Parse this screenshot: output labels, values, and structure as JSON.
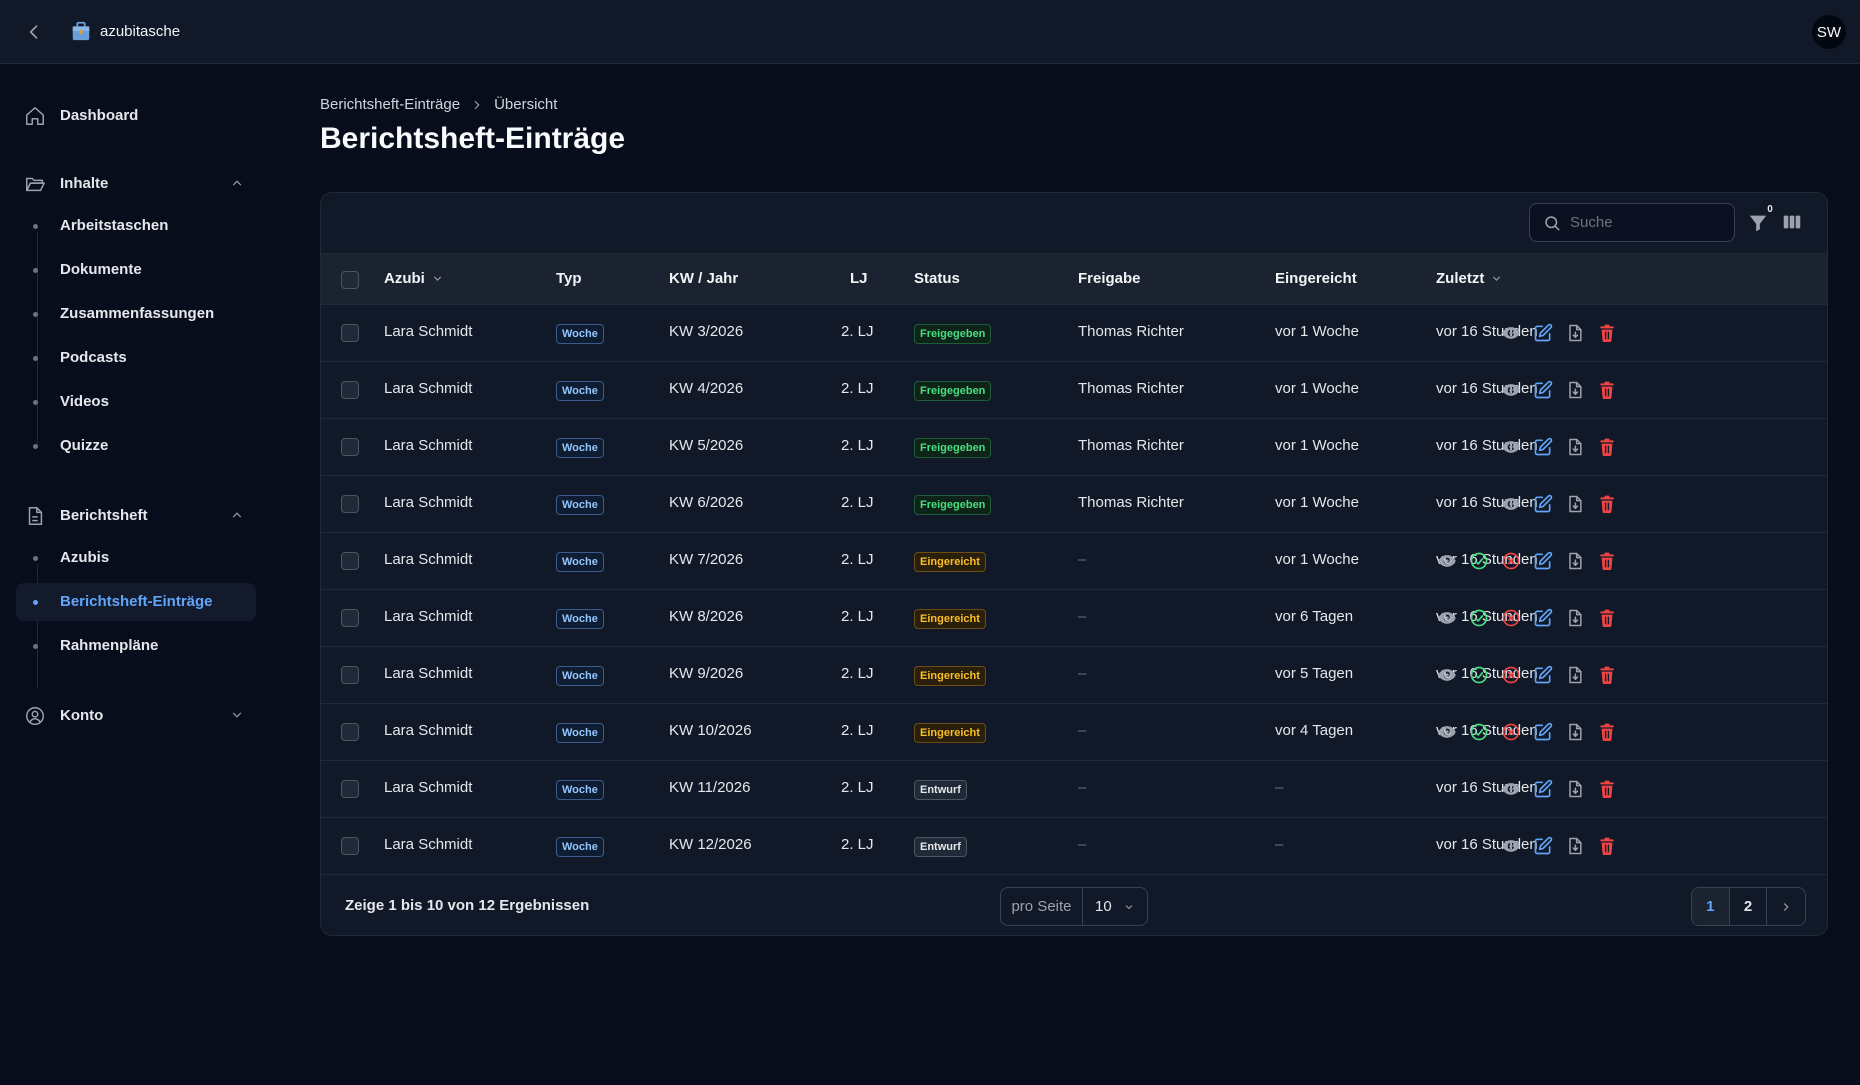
{
  "app": {
    "name": "azubitasche",
    "user_initials": "SW"
  },
  "colors": {
    "accent": "#60a5fa",
    "background": "#080d1c",
    "surface": "#111827",
    "success": "#4ade80",
    "warning": "#fbbf24",
    "danger": "#ef4444"
  },
  "sidebar": {
    "dashboard": "Dashboard",
    "inhalte": {
      "label": "Inhalte",
      "items": [
        "Arbeitstaschen",
        "Dokumente",
        "Zusammenfassungen",
        "Podcasts",
        "Videos",
        "Quizze"
      ]
    },
    "berichtsheft": {
      "label": "Berichtsheft",
      "items": [
        "Azubis",
        "Berichtsheft-Einträge",
        "Rahmenpläne"
      ],
      "active": "Berichtsheft-Einträge"
    },
    "konto": "Konto"
  },
  "breadcrumb": [
    "Berichtsheft-Einträge",
    "Übersicht"
  ],
  "page_title": "Berichtsheft-Einträge",
  "toolbar": {
    "search_placeholder": "Suche",
    "filter_count": "0"
  },
  "table": {
    "headers": {
      "azubi": "Azubi",
      "typ": "Typ",
      "kw": "KW / Jahr",
      "lj": "LJ",
      "status": "Status",
      "freigabe": "Freigabe",
      "eingereicht": "Eingereicht",
      "zuletzt": "Zuletzt"
    },
    "rows": [
      {
        "azubi": "Lara Schmidt",
        "typ": "Woche",
        "kw": "KW 3/2026",
        "lj": "2. LJ",
        "status": "Freigegeben",
        "freigabe": "Thomas Richter",
        "eingereicht": "vor 1 Woche",
        "zuletzt": "vor 16 Stunden"
      },
      {
        "azubi": "Lara Schmidt",
        "typ": "Woche",
        "kw": "KW 4/2026",
        "lj": "2. LJ",
        "status": "Freigegeben",
        "freigabe": "Thomas Richter",
        "eingereicht": "vor 1 Woche",
        "zuletzt": "vor 16 Stunden"
      },
      {
        "azubi": "Lara Schmidt",
        "typ": "Woche",
        "kw": "KW 5/2026",
        "lj": "2. LJ",
        "status": "Freigegeben",
        "freigabe": "Thomas Richter",
        "eingereicht": "vor 1 Woche",
        "zuletzt": "vor 16 Stunden"
      },
      {
        "azubi": "Lara Schmidt",
        "typ": "Woche",
        "kw": "KW 6/2026",
        "lj": "2. LJ",
        "status": "Freigegeben",
        "freigabe": "Thomas Richter",
        "eingereicht": "vor 1 Woche",
        "zuletzt": "vor 16 Stunden"
      },
      {
        "azubi": "Lara Schmidt",
        "typ": "Woche",
        "kw": "KW 7/2026",
        "lj": "2. LJ",
        "status": "Eingereicht",
        "freigabe": "–",
        "eingereicht": "vor 1 Woche",
        "zuletzt": "vor 16 Stunden"
      },
      {
        "azubi": "Lara Schmidt",
        "typ": "Woche",
        "kw": "KW 8/2026",
        "lj": "2. LJ",
        "status": "Eingereicht",
        "freigabe": "–",
        "eingereicht": "vor 6 Tagen",
        "zuletzt": "vor 16 Stunden"
      },
      {
        "azubi": "Lara Schmidt",
        "typ": "Woche",
        "kw": "KW 9/2026",
        "lj": "2. LJ",
        "status": "Eingereicht",
        "freigabe": "–",
        "eingereicht": "vor 5 Tagen",
        "zuletzt": "vor 16 Stunden"
      },
      {
        "azubi": "Lara Schmidt",
        "typ": "Woche",
        "kw": "KW 10/2026",
        "lj": "2. LJ",
        "status": "Eingereicht",
        "freigabe": "–",
        "eingereicht": "vor 4 Tagen",
        "zuletzt": "vor 16 Stunden"
      },
      {
        "azubi": "Lara Schmidt",
        "typ": "Woche",
        "kw": "KW 11/2026",
        "lj": "2. LJ",
        "status": "Entwurf",
        "freigabe": "–",
        "eingereicht": "–",
        "zuletzt": "vor 16 Stunden"
      },
      {
        "azubi": "Lara Schmidt",
        "typ": "Woche",
        "kw": "KW 12/2026",
        "lj": "2. LJ",
        "status": "Entwurf",
        "freigabe": "–",
        "eingereicht": "–",
        "zuletzt": "vor 16 Stunden"
      }
    ]
  },
  "footer": {
    "results": "Zeige 1 bis 10 von 12 Ergebnissen",
    "per_page_label": "pro Seite",
    "per_page_value": "10",
    "pages": [
      "1",
      "2"
    ],
    "current_page": "1"
  }
}
